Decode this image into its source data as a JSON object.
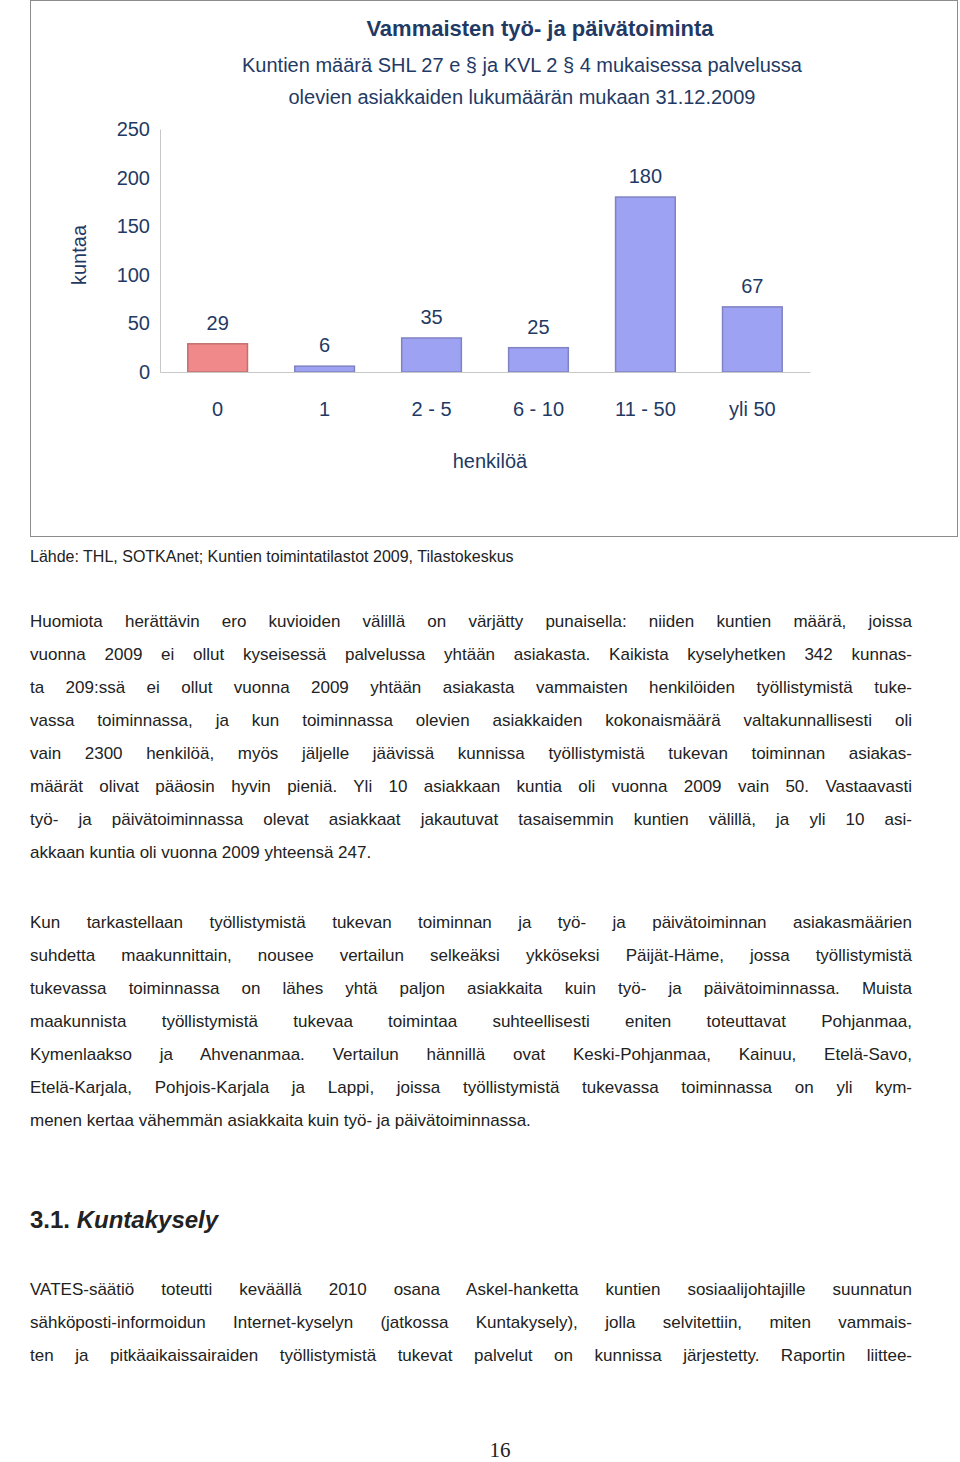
{
  "chart_data": {
    "type": "bar",
    "title": "Vammaisten työ- ja päivätoiminta",
    "subtitle": [
      "Kuntien määrä SHL 27 e § ja KVL 2 § 4 mukaisessa palvelussa",
      "olevien asiakkaiden lukumäärän mukaan 31.12.2009"
    ],
    "x_label": "henkilöä",
    "y_label": "kuntaa",
    "categories": [
      "0",
      "1",
      "2 - 5",
      "6 - 10",
      "11 - 50",
      "yli 50"
    ],
    "values": [
      29,
      6,
      35,
      25,
      180,
      67
    ],
    "colors": [
      "#f08a8a",
      "#9ea2f2",
      "#9ea2f2",
      "#9ea2f2",
      "#9ea2f2",
      "#9ea2f2"
    ],
    "ylim": [
      0,
      250
    ],
    "yticks": [
      0,
      50,
      100,
      150,
      200,
      250
    ],
    "grid": false,
    "data_labels": true
  },
  "document": {
    "source": "Lähde: THL, SOTKAnet; Kuntien toimintatilastot 2009, Tilastokeskus",
    "paragraphs": [
      {
        "lines": [
          "Huomiota herättävin ero kuvioiden välillä on värjätty punaisella: niiden kuntien määrä, joissa",
          "vuonna 2009 ei ollut kyseisessä palvelussa yhtään asiakasta. Kaikista kyselyhetken 342 kunnas-",
          "ta 209:ssä ei ollut vuonna 2009 yhtään asiakasta vammaisten henkilöiden työllistymistä tuke-",
          "vassa toiminnassa, ja kun toiminnassa olevien asiakkaiden kokonaismäärä valtakunnallisesti oli",
          "vain 2300 henkilöä, myös jäljelle jäävissä kunnissa työllistymistä tukevan toiminnan asiakas-",
          "määrät olivat pääosin hyvin pieniä. Yli 10 asiakkaan kuntia oli vuonna 2009 vain 50. Vastaavasti",
          "työ- ja päivätoiminnassa olevat asiakkaat jakautuvat tasaisemmin kuntien välillä, ja yli 10 asi-",
          "akkaan kuntia oli vuonna 2009 yhteensä 247."
        ]
      },
      {
        "lines": [
          "Kun tarkastellaan työllistymistä tukevan toiminnan ja työ- ja päivätoiminnan asiakasmäärien",
          "suhdetta maakunnittain, nousee vertailun selkeäksi ykköseksi Päijät-Häme, jossa työllistymistä",
          "tukevassa toiminnassa on lähes yhtä paljon asiakkaita kuin työ- ja päivätoiminnassa. Muista",
          "maakunnista työllistymistä tukevaa toimintaa suhteellisesti eniten toteuttavat Pohjanmaa,",
          "Kymenlaakso ja Ahvenanmaa. Vertailun hännillä ovat Keski-Pohjanmaa, Kainuu, Etelä-Savo,",
          "Etelä-Karjala, Pohjois-Karjala ja Lappi, joissa työllistymistä tukevassa toiminnassa on yli kym-",
          "menen kertaa vähemmän asiakkaita kuin työ- ja päivätoiminnassa."
        ]
      },
      {
        "lines": [
          "VATES-säätiö toteutti keväällä 2010 osana Askel-hanketta kuntien sosiaalijohtajille suunnatun",
          "sähköposti-informoidun Internet-kyselyn (jatkossa Kuntakysely), jolla selvitettiin, miten vammais-",
          "ten ja pitkäaikaissairaiden työllistymistä tukevat palvelut on kunnissa järjestetty. Raportin liittee-"
        ]
      }
    ],
    "heading": {
      "number": "3.1.",
      "text": "Kuntakysely"
    },
    "page_number": "16"
  }
}
